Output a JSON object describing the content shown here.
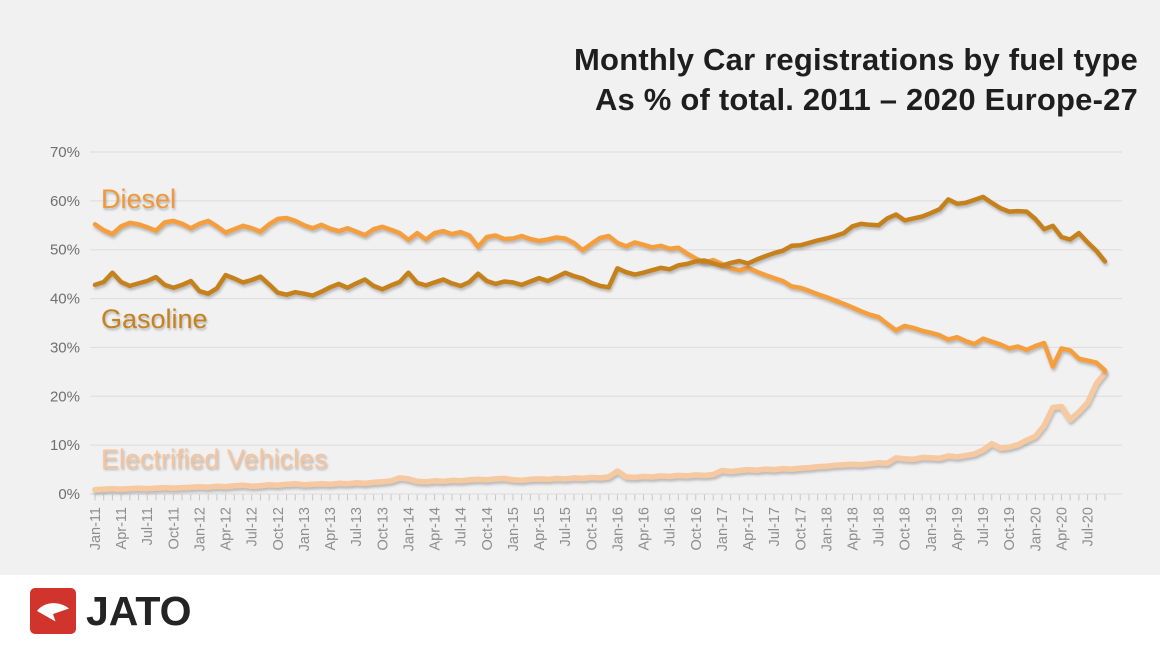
{
  "page": {
    "background": "#F1F1F1",
    "footer_background": "#FFFFFF",
    "gridline_color": "#E0E0E0",
    "tick_color": "#C6C6C6",
    "y_label_color": "#6F6F6F",
    "x_label_color": "#8D8D8D",
    "title_color": "#1E1E1E"
  },
  "footer": {
    "logo_text": "JATO",
    "logo_red": "#D0342C",
    "logo_glyph": "paper-plane-arrow"
  },
  "labels": {
    "diesel": "Diesel",
    "gasoline": "Gasoline",
    "ev": "Electrified Vehicles"
  },
  "chart_data": {
    "type": "line",
    "title": "Monthly Car registrations by fuel type",
    "subtitle": "As % of total. 2011 – 2020 Europe-27",
    "unit": "percent of total registrations",
    "x_frequency": "monthly",
    "x_range": [
      "Jan-11",
      "Sep-20"
    ],
    "ylim": [
      0,
      70
    ],
    "y_ticks": [
      0,
      10,
      20,
      30,
      40,
      50,
      60,
      70
    ],
    "y_tick_suffix": "%",
    "grid": "horizontal-only",
    "legend_position": "inline-labels-left",
    "x_tick_labels": [
      "Jan-11",
      "Apr-11",
      "Jul-11",
      "Oct-11",
      "Jan-12",
      "Apr-12",
      "Jul-12",
      "Oct-12",
      "Jan-13",
      "Apr-13",
      "Jul-13",
      "Oct-13",
      "Jan-14",
      "Apr-14",
      "Jul-14",
      "Oct-14",
      "Jan-15",
      "Apr-15",
      "Jul-15",
      "Oct-15",
      "Jan-16",
      "Apr-16",
      "Jul-16",
      "Oct-16",
      "Jan-17",
      "Apr-17",
      "Jul-17",
      "Oct-17",
      "Jan-18",
      "Apr-18",
      "Jul-18",
      "Oct-18",
      "Jan-19",
      "Apr-19",
      "Jul-19",
      "Oct-19",
      "Jan-20",
      "Apr-20",
      "Jul-20"
    ],
    "series": [
      {
        "name": "Electrified Vehicles",
        "color": "#F7C9A0",
        "label_color": "#F5C49D",
        "stroke_width": 5.5,
        "values": [
          0.9,
          1.0,
          1.1,
          1.0,
          1.1,
          1.2,
          1.1,
          1.2,
          1.3,
          1.2,
          1.3,
          1.4,
          1.5,
          1.4,
          1.6,
          1.5,
          1.7,
          1.8,
          1.6,
          1.7,
          1.9,
          1.8,
          2.0,
          2.1,
          1.9,
          2.0,
          2.1,
          2.0,
          2.2,
          2.1,
          2.3,
          2.2,
          2.4,
          2.5,
          2.7,
          3.3,
          3.1,
          2.6,
          2.5,
          2.7,
          2.6,
          2.8,
          2.7,
          2.9,
          3.0,
          2.9,
          3.1,
          3.2,
          2.9,
          2.8,
          3.0,
          3.1,
          3.0,
          3.2,
          3.1,
          3.3,
          3.2,
          3.4,
          3.3,
          3.5,
          4.7,
          3.5,
          3.4,
          3.6,
          3.5,
          3.7,
          3.6,
          3.8,
          3.7,
          3.9,
          3.8,
          4.0,
          4.8,
          4.6,
          4.8,
          5.0,
          4.9,
          5.1,
          5.0,
          5.2,
          5.1,
          5.3,
          5.4,
          5.6,
          5.7,
          5.9,
          6.0,
          6.1,
          6.0,
          6.2,
          6.4,
          6.3,
          7.4,
          7.2,
          7.1,
          7.5,
          7.4,
          7.3,
          7.8,
          7.6,
          7.9,
          8.2,
          9.0,
          10.3,
          9.4,
          9.6,
          10.1,
          11.0,
          11.8,
          14.0,
          17.7,
          17.9,
          15.2,
          16.8,
          18.7,
          22.6,
          24.8
        ]
      },
      {
        "name": "Diesel",
        "color": "#F49E3E",
        "label_color": "#F0993B",
        "stroke_width": 4.5,
        "values": [
          55.2,
          54.0,
          53.2,
          54.8,
          55.5,
          55.2,
          54.6,
          53.9,
          55.6,
          55.9,
          55.3,
          54.4,
          55.3,
          55.9,
          54.8,
          53.5,
          54.2,
          54.9,
          54.4,
          53.7,
          55.2,
          56.3,
          56.5,
          55.9,
          55.0,
          54.4,
          55.1,
          54.3,
          53.8,
          54.4,
          53.7,
          53.0,
          54.2,
          54.7,
          54.1,
          53.4,
          52.0,
          53.4,
          52.1,
          53.4,
          53.8,
          53.2,
          53.6,
          52.9,
          50.6,
          52.6,
          52.9,
          52.2,
          52.3,
          52.8,
          52.2,
          51.8,
          52.1,
          52.5,
          52.3,
          51.4,
          49.9,
          51.2,
          52.4,
          52.8,
          51.4,
          50.7,
          51.5,
          51.0,
          50.5,
          50.8,
          50.2,
          50.4,
          49.2,
          48.2,
          47.4,
          47.9,
          47.1,
          46.2,
          45.8,
          46.3,
          45.5,
          44.8,
          44.2,
          43.6,
          42.5,
          42.2,
          41.6,
          40.9,
          40.3,
          39.6,
          38.9,
          38.2,
          37.4,
          36.7,
          36.2,
          34.8,
          33.5,
          34.4,
          34.0,
          33.4,
          33.0,
          32.5,
          31.6,
          32.1,
          31.3,
          30.7,
          31.8,
          31.2,
          30.6,
          29.8,
          30.2,
          29.5,
          30.3,
          30.9,
          26.1,
          29.8,
          29.4,
          27.7,
          27.3,
          26.9,
          25.3
        ]
      },
      {
        "name": "Gasoline",
        "color": "#C5811F",
        "label_color": "#C5821E",
        "stroke_width": 4.5,
        "values": [
          42.8,
          43.4,
          45.3,
          43.4,
          42.6,
          43.1,
          43.6,
          44.4,
          42.8,
          42.2,
          42.8,
          43.6,
          41.5,
          41.0,
          42.1,
          44.8,
          44.1,
          43.3,
          43.8,
          44.5,
          42.9,
          41.2,
          40.8,
          41.3,
          41.0,
          40.6,
          41.4,
          42.3,
          43.0,
          42.2,
          43.1,
          43.9,
          42.6,
          41.9,
          42.7,
          43.4,
          45.3,
          43.2,
          42.7,
          43.3,
          43.9,
          43.1,
          42.6,
          43.4,
          45.1,
          43.6,
          43.0,
          43.5,
          43.3,
          42.8,
          43.5,
          44.2,
          43.6,
          44.4,
          45.3,
          44.6,
          44.1,
          43.2,
          42.6,
          42.3,
          46.2,
          45.4,
          44.9,
          45.3,
          45.8,
          46.3,
          46.0,
          46.8,
          47.1,
          47.6,
          47.8,
          47.2,
          46.7,
          47.3,
          47.7,
          47.2,
          48.0,
          48.7,
          49.3,
          49.8,
          50.8,
          50.9,
          51.4,
          51.9,
          52.3,
          52.8,
          53.4,
          54.8,
          55.3,
          55.1,
          55.0,
          56.4,
          57.2,
          56.0,
          56.4,
          56.8,
          57.5,
          58.3,
          60.3,
          59.4,
          59.6,
          60.2,
          60.8,
          59.6,
          58.5,
          57.8,
          57.9,
          57.8,
          56.3,
          54.2,
          54.9,
          52.6,
          52.1,
          53.4,
          51.5,
          49.8,
          47.6
        ]
      }
    ]
  }
}
